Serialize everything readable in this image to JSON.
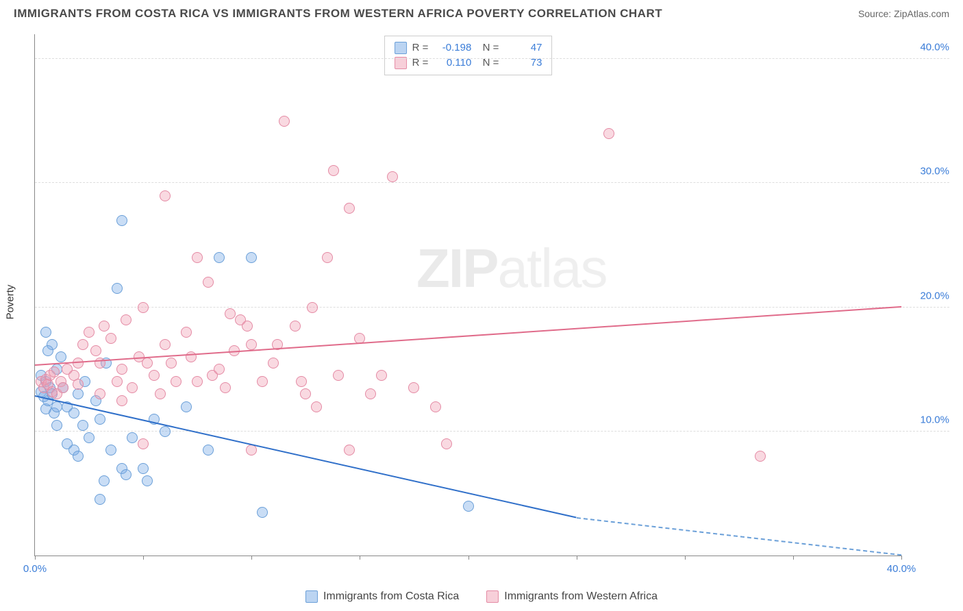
{
  "header": {
    "title": "IMMIGRANTS FROM COSTA RICA VS IMMIGRANTS FROM WESTERN AFRICA POVERTY CORRELATION CHART",
    "source": "Source: ZipAtlas.com"
  },
  "watermark": {
    "bold": "ZIP",
    "thin": "atlas"
  },
  "chart": {
    "type": "scatter",
    "y_axis_title": "Poverty",
    "xlim": [
      0,
      40
    ],
    "ylim": [
      0,
      42
    ],
    "x_ticks": [
      0,
      5,
      10,
      15,
      20,
      25,
      30,
      35,
      40
    ],
    "x_tick_labels": {
      "0": "0.0%",
      "40": "40.0%"
    },
    "y_ticks": [
      10,
      20,
      30,
      40
    ],
    "y_tick_labels": {
      "10": "10.0%",
      "20": "20.0%",
      "30": "30.0%",
      "40": "40.0%"
    },
    "grid_color": "#dddddd",
    "axis_color": "#888888",
    "background_color": "#ffffff",
    "marker_radius": 8,
    "series": [
      {
        "name": "Immigrants from Costa Rica",
        "color_fill": "rgba(120,170,230,0.4)",
        "color_stroke": "#6a9fd8",
        "trend_color": "#2f6fc9",
        "R": "-0.198",
        "N": "47",
        "trend": {
          "x1": 0,
          "y1": 12.8,
          "x2": 25,
          "y2": 3.0,
          "x_dash_to": 40
        },
        "points": [
          [
            0.3,
            13.2
          ],
          [
            0.4,
            12.8
          ],
          [
            0.5,
            14.0
          ],
          [
            0.5,
            11.8
          ],
          [
            0.6,
            12.5
          ],
          [
            0.7,
            13.5
          ],
          [
            0.8,
            13.0
          ],
          [
            0.9,
            11.5
          ],
          [
            1.0,
            12.0
          ],
          [
            1.0,
            10.5
          ],
          [
            0.5,
            18.0
          ],
          [
            0.8,
            17.0
          ],
          [
            1.2,
            16.0
          ],
          [
            0.3,
            14.5
          ],
          [
            1.5,
            9.0
          ],
          [
            1.8,
            8.5
          ],
          [
            2.0,
            8.0
          ],
          [
            2.2,
            10.5
          ],
          [
            2.5,
            9.5
          ],
          [
            3.0,
            4.5
          ],
          [
            3.2,
            6.0
          ],
          [
            3.5,
            8.5
          ],
          [
            4.0,
            7.0
          ],
          [
            4.2,
            6.5
          ],
          [
            4.5,
            9.5
          ],
          [
            5.0,
            7.0
          ],
          [
            5.2,
            6.0
          ],
          [
            5.5,
            11.0
          ],
          [
            3.3,
            15.5
          ],
          [
            3.8,
            21.5
          ],
          [
            4.0,
            27.0
          ],
          [
            8.5,
            24.0
          ],
          [
            10.0,
            24.0
          ],
          [
            10.5,
            3.5
          ],
          [
            1.0,
            15.0
          ],
          [
            1.3,
            13.5
          ],
          [
            1.5,
            12.0
          ],
          [
            1.8,
            11.5
          ],
          [
            2.0,
            13.0
          ],
          [
            2.3,
            14.0
          ],
          [
            2.8,
            12.5
          ],
          [
            3.0,
            11.0
          ],
          [
            6.0,
            10.0
          ],
          [
            7.0,
            12.0
          ],
          [
            8.0,
            8.5
          ],
          [
            20.0,
            4.0
          ],
          [
            0.6,
            16.5
          ]
        ]
      },
      {
        "name": "Immigrants from Western Africa",
        "color_fill": "rgba(240,160,180,0.4)",
        "color_stroke": "#e48aa4",
        "trend_color": "#e06b8a",
        "R": "0.110",
        "N": "73",
        "trend": {
          "x1": 0,
          "y1": 15.3,
          "x2": 40,
          "y2": 20.0
        },
        "points": [
          [
            0.3,
            14.0
          ],
          [
            0.4,
            13.5
          ],
          [
            0.5,
            14.2
          ],
          [
            0.6,
            13.8
          ],
          [
            0.7,
            14.5
          ],
          [
            0.8,
            13.2
          ],
          [
            0.9,
            14.8
          ],
          [
            1.0,
            13.0
          ],
          [
            1.2,
            14.0
          ],
          [
            1.3,
            13.5
          ],
          [
            1.5,
            15.0
          ],
          [
            1.8,
            14.5
          ],
          [
            2.0,
            13.8
          ],
          [
            2.2,
            17.0
          ],
          [
            2.5,
            18.0
          ],
          [
            2.8,
            16.5
          ],
          [
            3.0,
            15.5
          ],
          [
            3.2,
            18.5
          ],
          [
            3.5,
            17.5
          ],
          [
            3.8,
            14.0
          ],
          [
            4.0,
            15.0
          ],
          [
            4.2,
            19.0
          ],
          [
            4.5,
            13.5
          ],
          [
            4.8,
            16.0
          ],
          [
            5.0,
            20.0
          ],
          [
            5.2,
            15.5
          ],
          [
            5.5,
            14.5
          ],
          [
            5.8,
            13.0
          ],
          [
            6.0,
            17.0
          ],
          [
            6.3,
            15.5
          ],
          [
            6.5,
            14.0
          ],
          [
            7.0,
            18.0
          ],
          [
            7.2,
            16.0
          ],
          [
            7.5,
            24.0
          ],
          [
            8.0,
            22.0
          ],
          [
            8.2,
            14.5
          ],
          [
            8.5,
            15.0
          ],
          [
            9.0,
            19.5
          ],
          [
            9.2,
            16.5
          ],
          [
            9.5,
            19.0
          ],
          [
            9.8,
            18.5
          ],
          [
            10.0,
            17.0
          ],
          [
            10.5,
            14.0
          ],
          [
            11.0,
            15.5
          ],
          [
            11.5,
            35.0
          ],
          [
            12.0,
            18.5
          ],
          [
            12.3,
            14.0
          ],
          [
            12.5,
            13.0
          ],
          [
            12.8,
            20.0
          ],
          [
            13.0,
            12.0
          ],
          [
            13.5,
            24.0
          ],
          [
            13.8,
            31.0
          ],
          [
            14.0,
            14.5
          ],
          [
            14.5,
            28.0
          ],
          [
            15.0,
            17.5
          ],
          [
            15.5,
            13.0
          ],
          [
            16.0,
            14.5
          ],
          [
            16.5,
            30.5
          ],
          [
            17.5,
            13.5
          ],
          [
            18.5,
            12.0
          ],
          [
            19.0,
            9.0
          ],
          [
            26.5,
            34.0
          ],
          [
            33.5,
            8.0
          ],
          [
            6.0,
            29.0
          ],
          [
            5.0,
            9.0
          ],
          [
            10.0,
            8.5
          ],
          [
            14.5,
            8.5
          ],
          [
            3.0,
            13.0
          ],
          [
            4.0,
            12.5
          ],
          [
            7.5,
            14.0
          ],
          [
            8.8,
            13.5
          ],
          [
            11.2,
            17.0
          ],
          [
            2.0,
            15.5
          ]
        ]
      }
    ]
  },
  "legend_stats": {
    "rows": [
      0,
      1
    ]
  },
  "bottom_legend": {
    "items": [
      0,
      1
    ]
  }
}
